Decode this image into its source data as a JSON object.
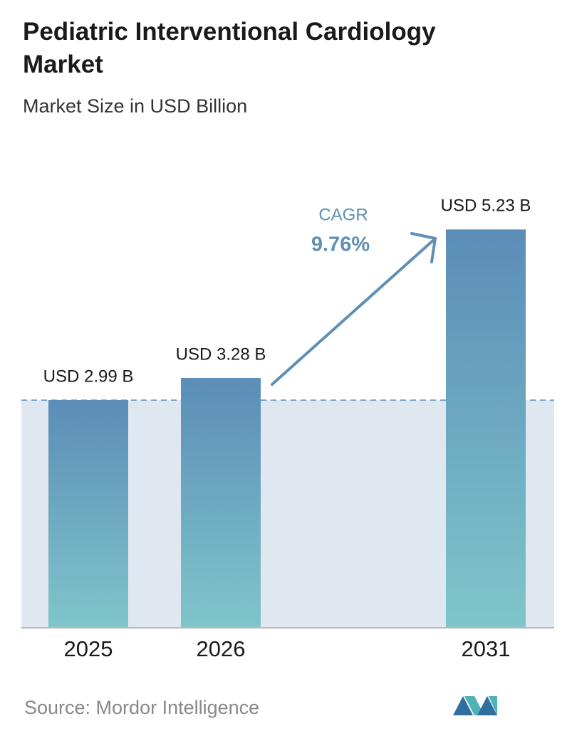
{
  "chart_data": {
    "type": "bar",
    "title": "Pediatric Interventional Cardiology Market",
    "subtitle": "Market Size in USD Billion",
    "categories": [
      "2025",
      "2026",
      "2031"
    ],
    "values": [
      2.99,
      3.28,
      5.23
    ],
    "value_labels": [
      "USD 2.99 B",
      "USD 3.28 B",
      "USD 5.23 B"
    ],
    "color_top": "#5b8db8",
    "color_bottom": "#80c5ca",
    "cagr_label": "CAGR",
    "cagr_value": "9.76%",
    "source": "Source:  Mordor Intelligence"
  }
}
